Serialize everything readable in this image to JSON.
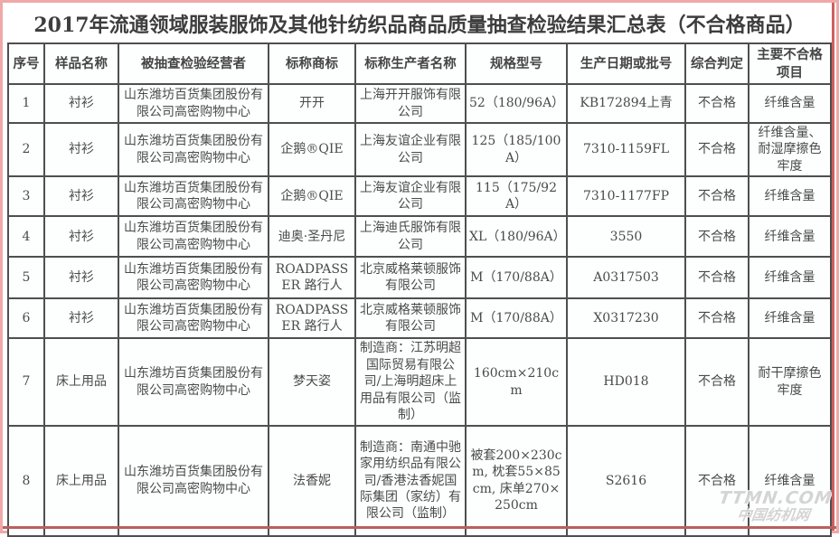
{
  "page": {
    "title": "2017年流通领域服装服饰及其他针纺织品商品质量抽查检验结果汇总表（不合格商品）"
  },
  "table": {
    "headers": [
      "序号",
      "样品名称",
      "被抽查检验经营者",
      "标称商标",
      "标称生产者名称",
      "规格型号",
      "生产日期或批号",
      "综合判定",
      "主要不合格项目"
    ],
    "rows": [
      [
        "1",
        "衬衫",
        "山东潍坊百货集团股份有限公司高密购物中心",
        "开开",
        "上海开开服饰有限公司",
        "52（180/96A）",
        "KB172894上青",
        "不合格",
        "纤维含量"
      ],
      [
        "2",
        "衬衫",
        "山东潍坊百货集团股份有限公司高密购物中心",
        "企鹅®QIE",
        "上海友谊企业有限公司",
        "125（185/100A）",
        "7310-1159FL",
        "不合格",
        "纤维含量、耐湿摩擦色牢度"
      ],
      [
        "3",
        "衬衫",
        "山东潍坊百货集团股份有限公司高密购物中心",
        "企鹅®QIE",
        "上海友谊企业有限公司",
        "115（175/92A）",
        "7310-1177FP",
        "不合格",
        "纤维含量"
      ],
      [
        "4",
        "衬衫",
        "山东潍坊百货集团股份有限公司高密购物中心",
        "迪奥·圣丹尼",
        "上海迪氏服饰有限公司",
        "XL（180/96A）",
        "3550",
        "不合格",
        "纤维含量"
      ],
      [
        "5",
        "衬衫",
        "山东潍坊百货集团股份有限公司高密购物中心",
        "ROADPASSER 路行人",
        "北京威格莱顿服饰有限公司",
        "M（170/88A）",
        "A0317503",
        "不合格",
        "纤维含量"
      ],
      [
        "6",
        "衬衫",
        "山东潍坊百货集团股份有限公司高密购物中心",
        "ROADPASSER 路行人",
        "北京威格莱顿服饰有限公司",
        "M（170/88A）",
        "X0317230",
        "不合格",
        "纤维含量"
      ],
      [
        "7",
        "床上用品",
        "山东潍坊百货集团股份有限公司高密购物中心",
        "梦天姿",
        "制造商：江苏明超国际贸易有限公司/上海明超床上用品有限公司（监制）",
        "160cm×210cm",
        "HD018",
        "不合格",
        "耐干摩擦色牢度"
      ],
      [
        "8",
        "床上用品",
        "山东潍坊百货集团股份有限公司高密购物中心",
        "法香妮",
        "制造商：南通中驰家用纺织品有限公司/香港法香妮国际集团（家纺）有限公司（监制）",
        "被套200×230cm, 枕套55×85cm, 床单270×250cm",
        "S2616",
        "不合格",
        "纤维含量"
      ]
    ]
  },
  "watermark": {
    "line1": "TTMN.COM",
    "line2": "中国纺机网"
  },
  "colors": {
    "grid": "#4f4f4f",
    "text": "#4a4a4a",
    "frame_pink": "#f0a8a8",
    "frame_red": "#cf5f5f"
  }
}
